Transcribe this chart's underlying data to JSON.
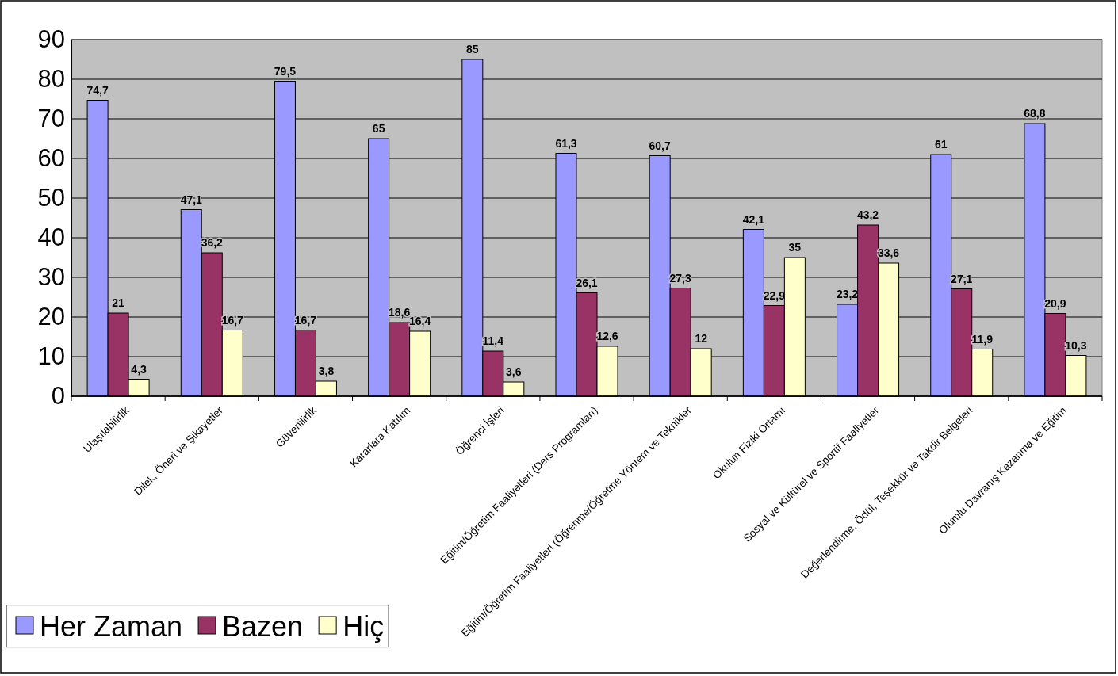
{
  "chart_data": {
    "type": "bar",
    "categories": [
      "Ulaşılabilirlik",
      "Dilek, Öneri ve Şikayetler",
      "Güvenilirlik",
      "Kararlara Katılım",
      "Öğrenci İşleri",
      "Eğitim/Öğretim Faaliyetleri (Ders Programları)",
      "Eğitim/Öğretim Faaliyetleri (Öğrenme/Öğretme Yöntem ve Teknikler",
      "Okulun Fiziki Ortamı",
      "Sosyal ve Kültürel ve Sportif Faaliyetler",
      "Değerlendirme, Ödül, Teşekkür ve Takdir Belgeleri",
      "Olumlu Davranış Kazanma ve Eğitim"
    ],
    "series": [
      {
        "name": "Her Zaman",
        "color": "#9999ff",
        "values": [
          74.7,
          47.1,
          79.5,
          65,
          85,
          61.3,
          60.7,
          42.1,
          23.2,
          61,
          68.8
        ],
        "value_labels": [
          "74,7",
          "47,1",
          "79,5",
          "65",
          "85",
          "61,3",
          "60,7",
          "42,1",
          "23,2",
          "61",
          "68,8"
        ]
      },
      {
        "name": "Bazen",
        "color": "#993366",
        "values": [
          21,
          36.2,
          16.7,
          18.6,
          11.4,
          26.1,
          27.3,
          22.9,
          43.2,
          27.1,
          20.9
        ],
        "value_labels": [
          "21",
          "36,2",
          "16,7",
          "18,6",
          "11,4",
          "26,1",
          "27,3",
          "22,9",
          "43,2",
          "27,1",
          "20,9"
        ]
      },
      {
        "name": "Hiç",
        "color": "#ffffcc",
        "values": [
          4.3,
          16.7,
          3.8,
          16.4,
          3.6,
          12.6,
          12,
          35,
          33.6,
          11.9,
          10.3
        ],
        "value_labels": [
          "4,3",
          "16,7",
          "3,8",
          "16,4",
          "3,6",
          "12,6",
          "12",
          "35",
          "33,6",
          "11,9",
          "10,3"
        ]
      }
    ],
    "ylim": [
      0,
      90
    ],
    "yticks": [
      0,
      10,
      20,
      30,
      40,
      50,
      60,
      70,
      80,
      90
    ],
    "grid": "y",
    "legend": "bottom left"
  }
}
